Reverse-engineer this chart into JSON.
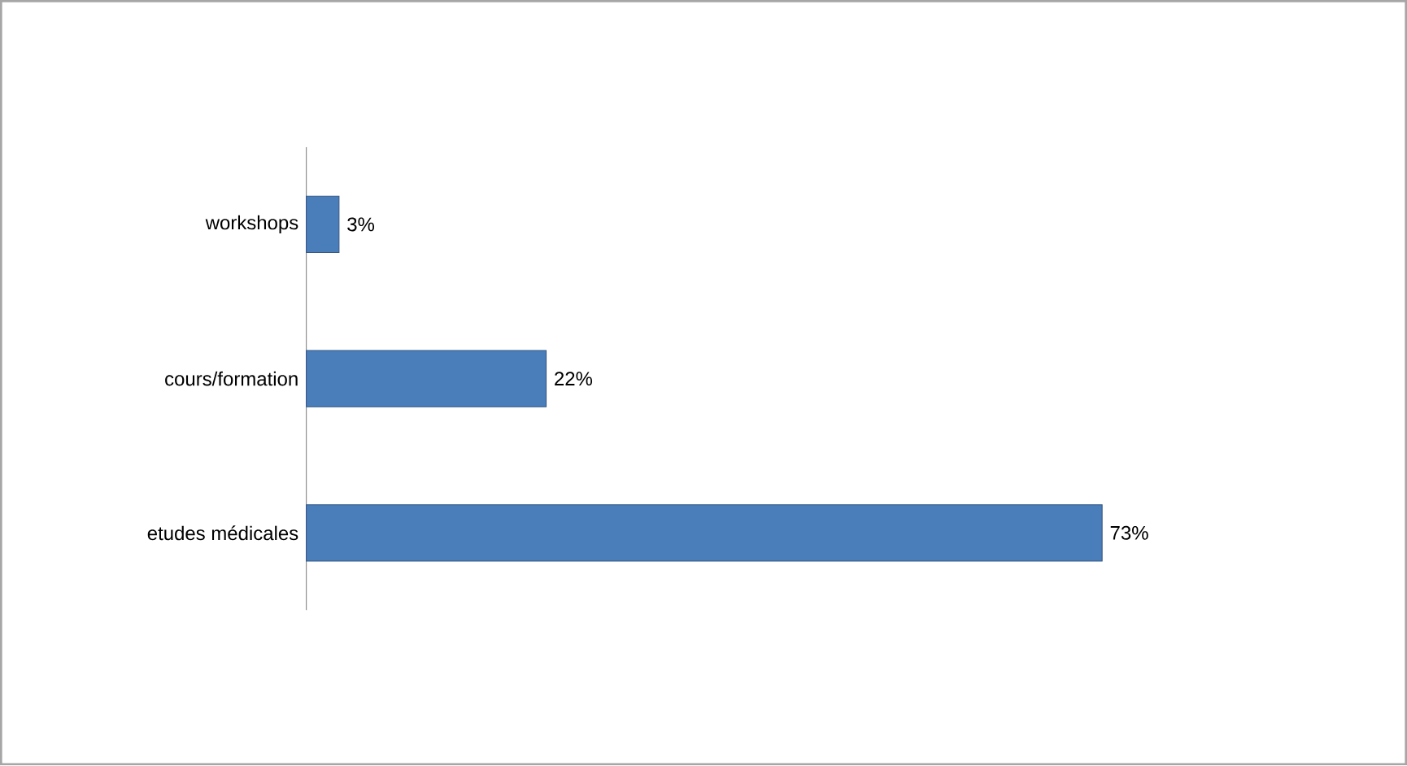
{
  "chart_data": {
    "type": "bar",
    "orientation": "horizontal",
    "categories": [
      "workshops",
      "cours/formation",
      "etudes médicales"
    ],
    "values": [
      3,
      22,
      73
    ],
    "value_labels": [
      "3%",
      "22%",
      "73%"
    ],
    "color": "#4a7ebb"
  }
}
